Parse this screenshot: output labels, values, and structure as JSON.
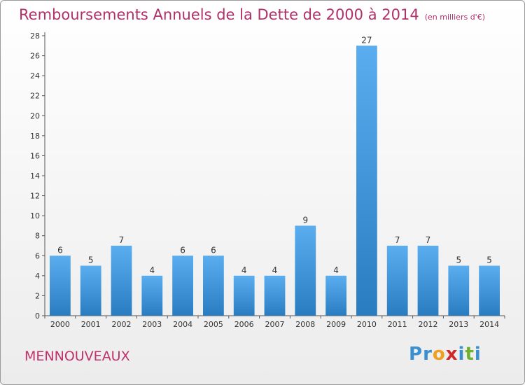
{
  "title": "Remboursements Annuels de la Dette de 2000 à 2014",
  "title_unit": "(en milliers d'€)",
  "commune": "MENNOUVEAUX",
  "logo": {
    "text": "Proxiti",
    "letters": [
      {
        "ch": "P",
        "color": "#3a8fd0"
      },
      {
        "ch": "r",
        "color": "#3a8fd0"
      },
      {
        "ch": "o",
        "color": "#f0a020"
      },
      {
        "ch": "x",
        "color": "#d02828"
      },
      {
        "ch": "i",
        "color": "#3a8fd0"
      },
      {
        "ch": "t",
        "color": "#70b030"
      },
      {
        "ch": "i",
        "color": "#3a8fd0"
      }
    ]
  },
  "colors": {
    "bar_light": "#5aaef0",
    "bar_dark": "#2a7cc0",
    "title": "#b0306a"
  },
  "chart_data": {
    "type": "bar",
    "categories": [
      "2000",
      "2001",
      "2002",
      "2003",
      "2004",
      "2005",
      "2006",
      "2007",
      "2008",
      "2009",
      "2010",
      "2011",
      "2012",
      "2013",
      "2014"
    ],
    "values": [
      6,
      5,
      7,
      4,
      6,
      6,
      4,
      4,
      9,
      4,
      27,
      7,
      7,
      5,
      5
    ],
    "ylim": [
      0,
      28
    ],
    "yticks": [
      0,
      2,
      4,
      6,
      8,
      10,
      12,
      14,
      16,
      18,
      20,
      22,
      24,
      26,
      28
    ],
    "grid": false,
    "xlabel": "",
    "ylabel": ""
  }
}
